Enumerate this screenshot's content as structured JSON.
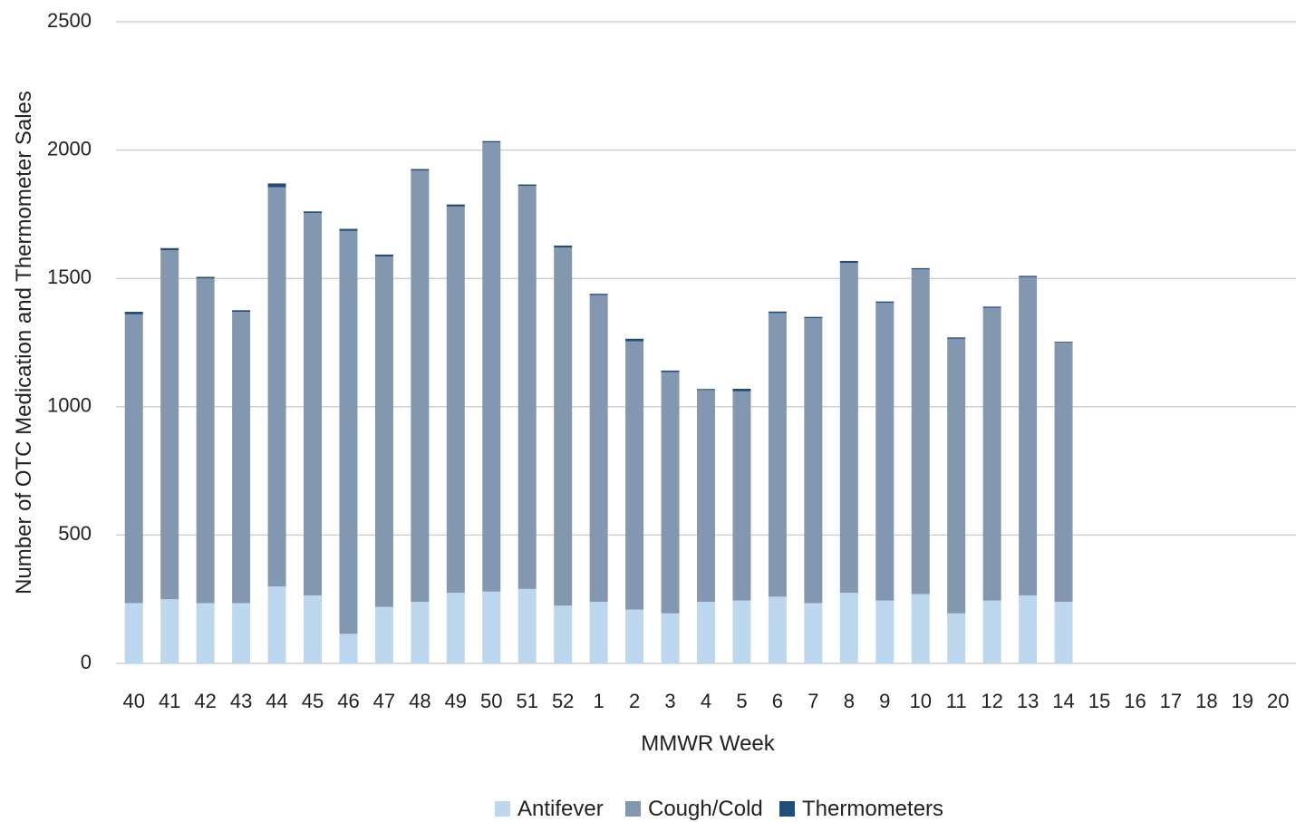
{
  "chart_data": {
    "type": "bar",
    "stacked": true,
    "xlabel": "MMWR Week",
    "ylabel": "Number of OTC Medication and Thermometer Sales",
    "ylim": [
      0,
      2500
    ],
    "yticks": [
      0,
      500,
      1000,
      1500,
      2000,
      2500
    ],
    "grid": true,
    "legend_position": "bottom",
    "categories": [
      "40",
      "41",
      "42",
      "43",
      "44",
      "45",
      "46",
      "47",
      "48",
      "49",
      "50",
      "51",
      "52",
      "1",
      "2",
      "3",
      "4",
      "5",
      "6",
      "7",
      "8",
      "9",
      "10",
      "11",
      "12",
      "13",
      "14",
      "15",
      "16",
      "17",
      "18",
      "19",
      "20"
    ],
    "series": [
      {
        "name": "Antifever",
        "color": "#bdd7ee",
        "values": [
          235,
          250,
          235,
          235,
          300,
          265,
          115,
          220,
          240,
          275,
          280,
          290,
          225,
          240,
          210,
          195,
          240,
          245,
          260,
          235,
          275,
          245,
          270,
          195,
          245,
          265,
          240,
          null,
          null,
          null,
          null,
          null,
          null
        ]
      },
      {
        "name": "Cough/Cold",
        "color": "#8497b0",
        "values": [
          1125,
          1360,
          1265,
          1135,
          1555,
          1490,
          1570,
          1365,
          1680,
          1505,
          1750,
          1570,
          1395,
          1195,
          1045,
          940,
          825,
          815,
          1105,
          1110,
          1285,
          1160,
          1265,
          1070,
          1140,
          1240,
          1010,
          null,
          null,
          null,
          null,
          null,
          null
        ]
      },
      {
        "name": "Thermometers",
        "color": "#1f4e79",
        "values": [
          10,
          8,
          6,
          6,
          15,
          6,
          8,
          8,
          6,
          8,
          5,
          6,
          8,
          5,
          10,
          6,
          4,
          10,
          6,
          5,
          8,
          5,
          5,
          5,
          5,
          5,
          3,
          null,
          null,
          null,
          null,
          null,
          null
        ]
      }
    ]
  }
}
